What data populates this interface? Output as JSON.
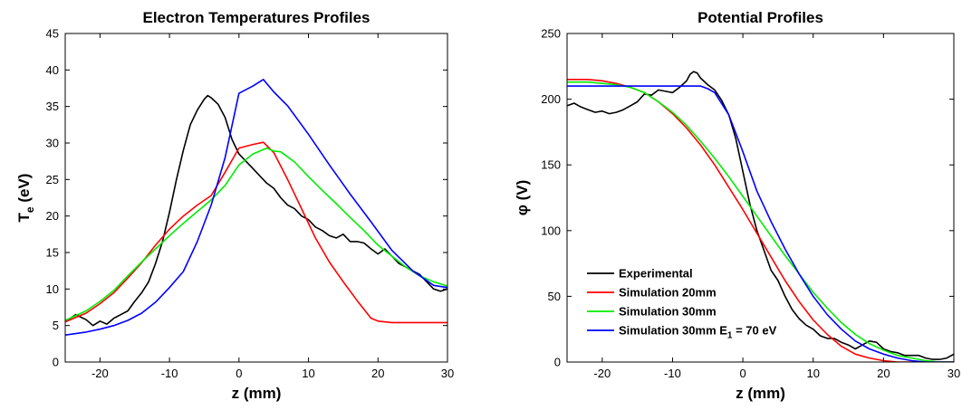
{
  "chart_data": [
    {
      "type": "line",
      "title": "Electron Temperatures Profiles",
      "xlabel": "z (mm)",
      "ylabel": "T",
      "ylabel_sub": "e",
      "ylabel_suffix": " (eV)",
      "xlim": [
        -25,
        30
      ],
      "ylim": [
        0,
        45
      ],
      "xticks": [
        -20,
        -10,
        0,
        10,
        20,
        30
      ],
      "yticks": [
        0,
        5,
        10,
        15,
        20,
        25,
        30,
        35,
        40,
        45
      ],
      "grid": false,
      "series": [
        {
          "color": "#000000",
          "x": [
            -25,
            -23.5,
            -22,
            -21,
            -20,
            -19,
            -18,
            -17,
            -16,
            -15,
            -14,
            -13,
            -12,
            -11,
            -10,
            -9,
            -8,
            -7,
            -6,
            -5,
            -4.5,
            -4,
            -3,
            -2,
            -1,
            0,
            1,
            2,
            3,
            4,
            5,
            6,
            7,
            8,
            9,
            10,
            11,
            12,
            13,
            14,
            15,
            16,
            17,
            18,
            19,
            20,
            21,
            22,
            23,
            24,
            25,
            26,
            27,
            28,
            29,
            30
          ],
          "y": [
            5.5,
            6.5,
            5.8,
            5,
            5.6,
            5.2,
            6,
            6.5,
            7,
            8.3,
            9.5,
            11,
            13.5,
            16.5,
            20.5,
            25,
            29,
            32.5,
            34.5,
            36,
            36.5,
            36.2,
            35.3,
            33.5,
            30.5,
            28.5,
            27.5,
            26.5,
            25.5,
            24.5,
            23.8,
            22.5,
            21.5,
            21,
            20,
            19.5,
            18.5,
            18,
            17.3,
            17,
            17.5,
            16.5,
            16.5,
            16.3,
            15.5,
            14.8,
            15.5,
            14.5,
            13.5,
            13,
            12.5,
            12,
            11,
            10,
            9.7,
            10
          ]
        },
        {
          "color": "#ff0000",
          "x": [
            -25,
            -22,
            -20,
            -18,
            -16,
            -14,
            -12,
            -10,
            -8,
            -6,
            -4,
            -2,
            0,
            2,
            3.5,
            5,
            7,
            9,
            11,
            13,
            15,
            17,
            19,
            20,
            22,
            25,
            30
          ],
          "y": [
            5.5,
            6.7,
            8,
            9.5,
            11.5,
            13.6,
            16,
            18.2,
            20,
            21.5,
            22.8,
            26,
            29.3,
            29.8,
            30.1,
            28.7,
            25,
            21,
            17,
            13.7,
            11,
            8.4,
            6,
            5.6,
            5.4,
            5.4,
            5.4
          ]
        },
        {
          "color": "#00ee00",
          "x": [
            -25,
            -22,
            -20,
            -18,
            -16,
            -14,
            -12,
            -10,
            -8,
            -6,
            -4,
            -2,
            0,
            2,
            4,
            5,
            6,
            7,
            8,
            10,
            12,
            14,
            16,
            18,
            20,
            22,
            24,
            26,
            28,
            30
          ],
          "y": [
            5.7,
            7,
            8.3,
            9.8,
            11.8,
            13.7,
            15.5,
            17.3,
            19,
            20.6,
            22.2,
            24.2,
            27,
            28.5,
            29.3,
            28.9,
            28.8,
            28.1,
            27.4,
            25.4,
            23.5,
            21.7,
            19.8,
            18,
            16,
            14.5,
            13,
            11.8,
            11,
            10.4
          ]
        },
        {
          "color": "#0000ff",
          "x": [
            -25,
            -22,
            -20,
            -18,
            -16,
            -14,
            -12,
            -10,
            -8,
            -6,
            -4,
            -2,
            0,
            2,
            3.5,
            5,
            7,
            10,
            13,
            16,
            19,
            22,
            25,
            28,
            30
          ],
          "y": [
            3.7,
            4.1,
            4.5,
            5,
            5.7,
            6.7,
            8.2,
            10.2,
            12.4,
            16.5,
            21.5,
            28,
            36.8,
            37.8,
            38.7,
            37,
            35.1,
            31.2,
            27,
            23,
            19.2,
            15.3,
            12.5,
            10.5,
            10.2
          ]
        }
      ]
    },
    {
      "type": "line",
      "title": "Potential Profiles",
      "xlabel": "z (mm)",
      "ylabel": "φ (V)",
      "xlim": [
        -25,
        30
      ],
      "ylim": [
        0,
        250
      ],
      "xticks": [
        -20,
        -10,
        0,
        10,
        20,
        30
      ],
      "yticks": [
        0,
        50,
        100,
        150,
        200,
        250
      ],
      "grid": false,
      "legend": "lower-left",
      "series": [
        {
          "name": "Experimental",
          "color": "#000000",
          "x": [
            -25,
            -24,
            -23,
            -22,
            -21,
            -20,
            -19,
            -18,
            -17,
            -16,
            -15,
            -14,
            -13,
            -12,
            -11,
            -10,
            -9,
            -8,
            -7.5,
            -7,
            -6.5,
            -6,
            -5,
            -4,
            -3,
            -2,
            -1,
            0,
            1,
            2,
            3,
            4,
            5,
            6,
            7,
            8,
            9,
            10,
            11,
            12,
            13,
            14,
            15,
            16,
            17,
            18,
            19,
            20,
            21,
            22,
            23,
            24,
            25,
            26,
            27,
            28,
            29,
            30
          ],
          "y": [
            195,
            197,
            194,
            192,
            190,
            191,
            189,
            190,
            192,
            195,
            198,
            204,
            203,
            207,
            206,
            205,
            209,
            214,
            219,
            221,
            220,
            216,
            211,
            207,
            199,
            188,
            170,
            145,
            120,
            100,
            85,
            70,
            62,
            50,
            40,
            33,
            28,
            25,
            20,
            18,
            18,
            15,
            13,
            10,
            13,
            16,
            15,
            10,
            8,
            7,
            5,
            5,
            5,
            3,
            2,
            2,
            3,
            6
          ]
        },
        {
          "name": "Simulation 20mm",
          "color": "#ff0000",
          "x": [
            -25,
            -22,
            -20,
            -18,
            -16,
            -14,
            -12,
            -10,
            -8,
            -6,
            -4,
            -2,
            0,
            2,
            4,
            6,
            8,
            10,
            12,
            14,
            16,
            18,
            20,
            22,
            25,
            30
          ],
          "y": [
            215,
            215,
            214,
            212,
            209,
            205,
            198,
            189,
            178,
            165,
            150,
            133,
            116,
            98,
            80,
            62,
            46,
            32,
            21,
            12,
            6,
            3,
            1,
            0,
            0,
            0
          ]
        },
        {
          "name": "Simulation 30mm",
          "color": "#00ee00",
          "x": [
            -25,
            -22,
            -20,
            -18,
            -16,
            -14,
            -12,
            -10,
            -8,
            -6,
            -4,
            -2,
            0,
            2,
            4,
            6,
            8,
            10,
            12,
            14,
            16,
            18,
            20,
            22,
            24,
            26,
            28,
            30
          ],
          "y": [
            213,
            213,
            212,
            211,
            209,
            205,
            198,
            190,
            180,
            168,
            155,
            141,
            126,
            111,
            96,
            81,
            67,
            53,
            41,
            30,
            21,
            14,
            9,
            5,
            3,
            1,
            0,
            0
          ]
        },
        {
          "name": "Simulation 30mm E",
          "name_sub": "1",
          "name_suffix": " = 70 eV",
          "color": "#0000ff",
          "x": [
            -25,
            -20,
            -16,
            -12,
            -8,
            -6,
            -5,
            -4,
            -2,
            0,
            2,
            4,
            6,
            8,
            10,
            12,
            14,
            16,
            18,
            20,
            22,
            24,
            26,
            28,
            30
          ],
          "y": [
            210,
            210,
            210,
            210,
            210,
            210,
            208,
            205,
            188,
            160,
            130,
            107,
            86,
            67,
            50,
            36,
            25,
            16,
            10,
            6,
            3,
            1,
            0,
            0,
            0
          ]
        }
      ]
    }
  ]
}
